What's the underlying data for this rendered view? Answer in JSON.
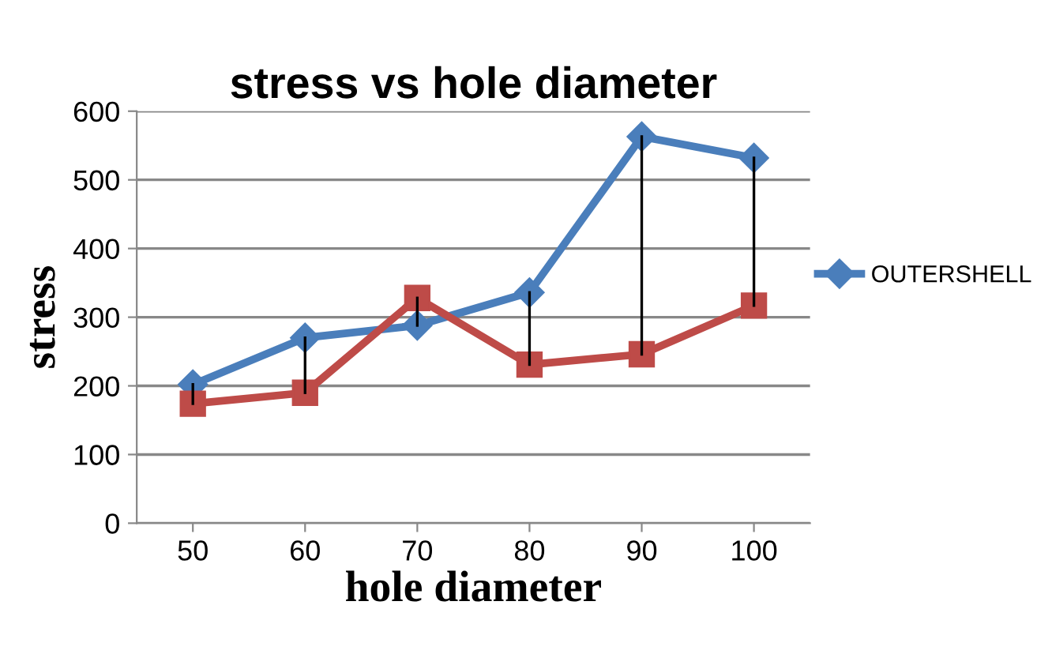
{
  "chart_data": {
    "type": "line",
    "title": "stress vs hole diameter",
    "xlabel": "hole diameter",
    "ylabel": "stress",
    "categories": [
      "50",
      "60",
      "70",
      "80",
      "90",
      "100"
    ],
    "series": [
      {
        "name": "OUTERSHELL",
        "color": "#4a7ebb",
        "marker": "diamond",
        "values": [
          202,
          270,
          288,
          336,
          563,
          532
        ]
      },
      {
        "color": "#be4b48",
        "marker": "square",
        "values": [
          174,
          190,
          328,
          231,
          246,
          317
        ],
        "errors": [
          [
            174,
            202
          ],
          [
            190,
            270
          ],
          [
            288,
            328
          ],
          [
            231,
            336
          ],
          [
            246,
            563
          ],
          [
            317,
            532
          ]
        ]
      }
    ],
    "ylim": [
      0,
      600
    ],
    "yticks": [
      0,
      100,
      200,
      300,
      400,
      500,
      600
    ],
    "grid": "y",
    "legend": "right"
  }
}
